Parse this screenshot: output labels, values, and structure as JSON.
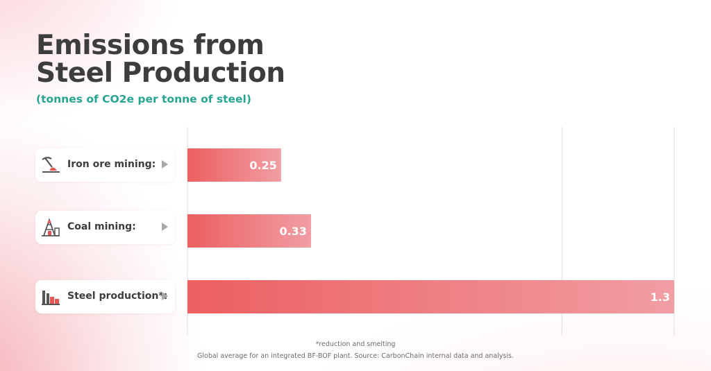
{
  "title_line1": "Emissions from",
  "title_line2": "Steel Production",
  "subtitle": "(tonnes of CO2e per tonne of steel)",
  "footnote1": "*reduction and smelting",
  "footnote2": "Global average for an integrated BF-BOF plant. Source: CarbonChain internal data and analysis.",
  "colors": {
    "bar_start": "#ec5f60",
    "bar_end": "#f19ea4",
    "subtitle": "#27a592",
    "title": "#3d3d3d"
  },
  "chart_data": {
    "type": "bar",
    "orientation": "horizontal",
    "categories": [
      "Iron ore mining:",
      "Coal mining:",
      "Steel production*:"
    ],
    "icons": [
      "pickaxe-icon",
      "mine-tower-icon",
      "factory-icon"
    ],
    "values": [
      0.25,
      0.33,
      1.3
    ],
    "data_labels": [
      "0.25",
      "0.33",
      "1.3"
    ],
    "xlim": [
      0,
      1.3
    ],
    "gridlines": [
      0,
      1,
      1.3
    ],
    "grid": true,
    "title": "Emissions from Steel Production",
    "subtitle": "(tonnes of CO2e per tonne of steel)"
  }
}
